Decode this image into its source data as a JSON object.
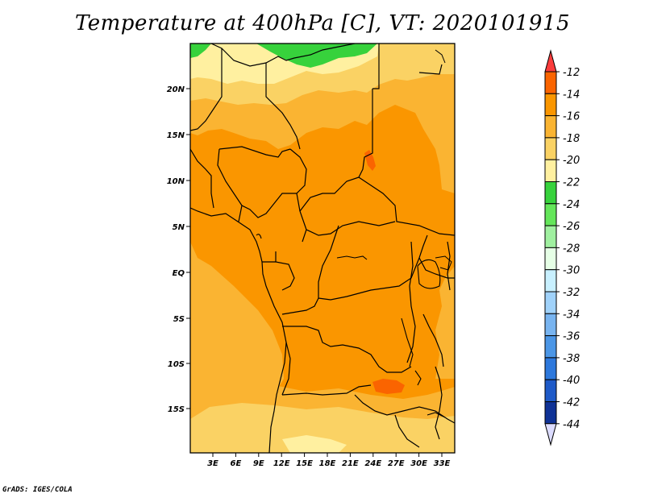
{
  "title": "Temperature at 400hPa [C], VT: 2020101915",
  "credit": "GrADS: IGES/COLA",
  "map": {
    "lat_labels": [
      "20N",
      "15N",
      "10N",
      "5N",
      "EQ",
      "5S",
      "10S",
      "15S"
    ],
    "lon_labels": [
      "3E",
      "6E",
      "9E",
      "12E",
      "15E",
      "18E",
      "21E",
      "24E",
      "27E",
      "30E",
      "33E"
    ]
  },
  "colorbar": {
    "labels": [
      "-12",
      "-14",
      "-16",
      "-18",
      "-20",
      "-22",
      "-24",
      "-26",
      "-28",
      "-30",
      "-32",
      "-34",
      "-36",
      "-38",
      "-40",
      "-42",
      "-44"
    ],
    "colors": [
      "#fa6400",
      "#fa9600",
      "#fab432",
      "#fad264",
      "#fff0a0",
      "#37d23c",
      "#64e65a",
      "#a0f0a0",
      "#e6ffe6",
      "#c8f0ff",
      "#a0d2fa",
      "#78b4f0",
      "#4b96e6",
      "#2d78dc",
      "#1e5ac8",
      "#0f3296",
      "#dcdcff"
    ],
    "top_color": "#fa3c3c",
    "bottom_color": "#dcdcff"
  }
}
